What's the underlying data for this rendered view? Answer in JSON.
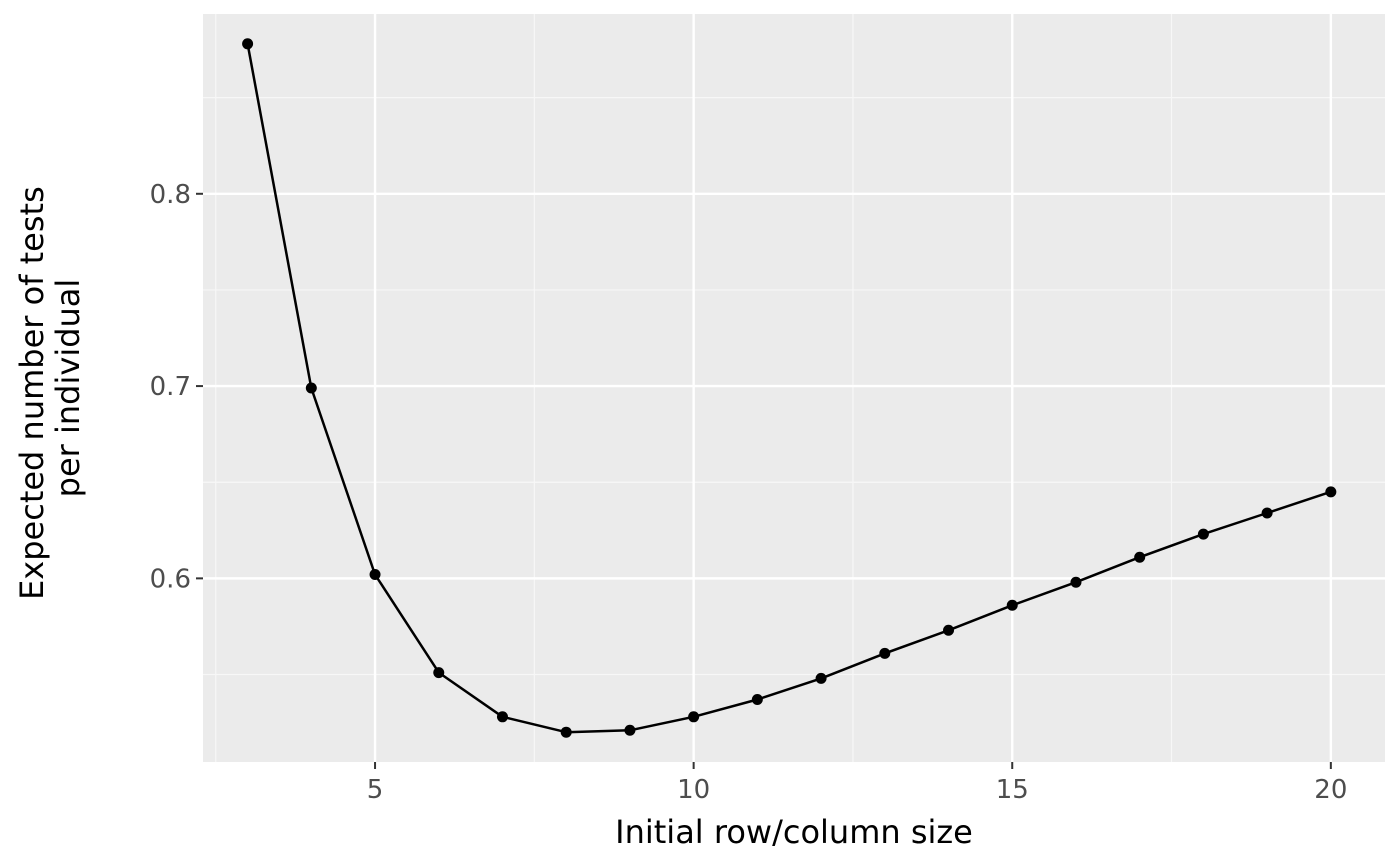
{
  "chart_data": {
    "type": "line",
    "title": "",
    "xlabel": "Initial row/column size",
    "ylabel_lines": [
      "Expected number of tests",
      "per individual"
    ],
    "x": [
      3,
      4,
      5,
      6,
      7,
      8,
      9,
      10,
      11,
      12,
      13,
      14,
      15,
      16,
      17,
      18,
      19,
      20
    ],
    "series": [
      {
        "values": [
          0.878,
          0.699,
          0.602,
          0.551,
          0.528,
          0.52,
          0.521,
          0.528,
          0.537,
          0.548,
          0.561,
          0.573,
          0.586,
          0.598,
          0.611,
          0.623,
          0.634,
          0.645
        ]
      }
    ],
    "xlim": [
      2.3,
      20.85
    ],
    "ylim": [
      0.5045,
      0.8935
    ],
    "x_major_ticks": [
      5,
      10,
      15,
      20
    ],
    "x_minor_ticks": [
      2.5,
      7.5,
      12.5,
      17.5
    ],
    "y_major_ticks": [
      0.6,
      0.7,
      0.8
    ],
    "y_minor_ticks": [
      0.55,
      0.65,
      0.75,
      0.85
    ],
    "x_tick_labels": [
      "5",
      "10",
      "15",
      "20"
    ],
    "y_tick_labels": [
      "0.6",
      "0.7",
      "0.8"
    ],
    "grid": true,
    "legend": "none",
    "colors": {
      "panel_background": "#ebebeb",
      "grid_major": "#ffffff",
      "grid_minor": "#f7f7f7",
      "line": "#000000",
      "point": "#000000",
      "tick_label": "#4d4d4d"
    }
  }
}
